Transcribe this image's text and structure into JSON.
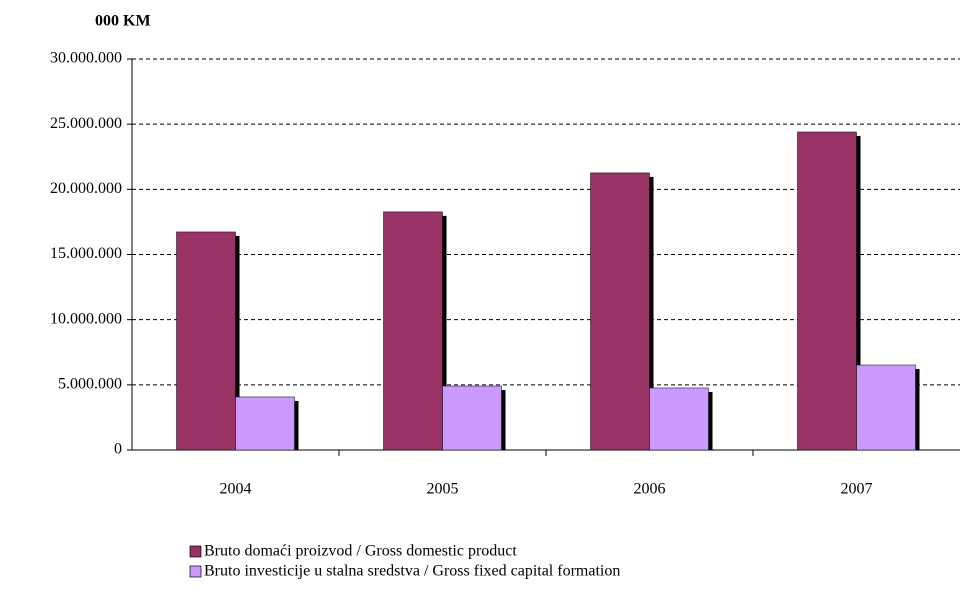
{
  "chart_data": {
    "type": "bar",
    "title": "000 KM",
    "categories": [
      "2004",
      "2005",
      "2006",
      "2007"
    ],
    "series": [
      {
        "name": "Bruto domaći proizvod / Gross domestic product",
        "color": "#993366",
        "values": [
          16730000,
          18270000,
          21260000,
          24400000
        ]
      },
      {
        "name": "Bruto investicije u stalna sredstva / Gross fixed capital formation",
        "color": "#cc99ff",
        "values": [
          4070000,
          4910000,
          4760000,
          6520000
        ]
      }
    ],
    "ylim": [
      0,
      30000000
    ],
    "yticks": [
      0,
      {
        "value": 5000000,
        "label": "5.000.000"
      },
      {
        "value": 10000000,
        "label": "10.000.000"
      },
      {
        "value": 15000000,
        "label": "15.000.000"
      },
      {
        "value": 20000000,
        "label": "20.000.000"
      },
      {
        "value": 25000000,
        "label": "25.000.000"
      },
      {
        "value": 30000000,
        "label": "30.000.000"
      }
    ],
    "grid": true,
    "legend": "bottom"
  }
}
